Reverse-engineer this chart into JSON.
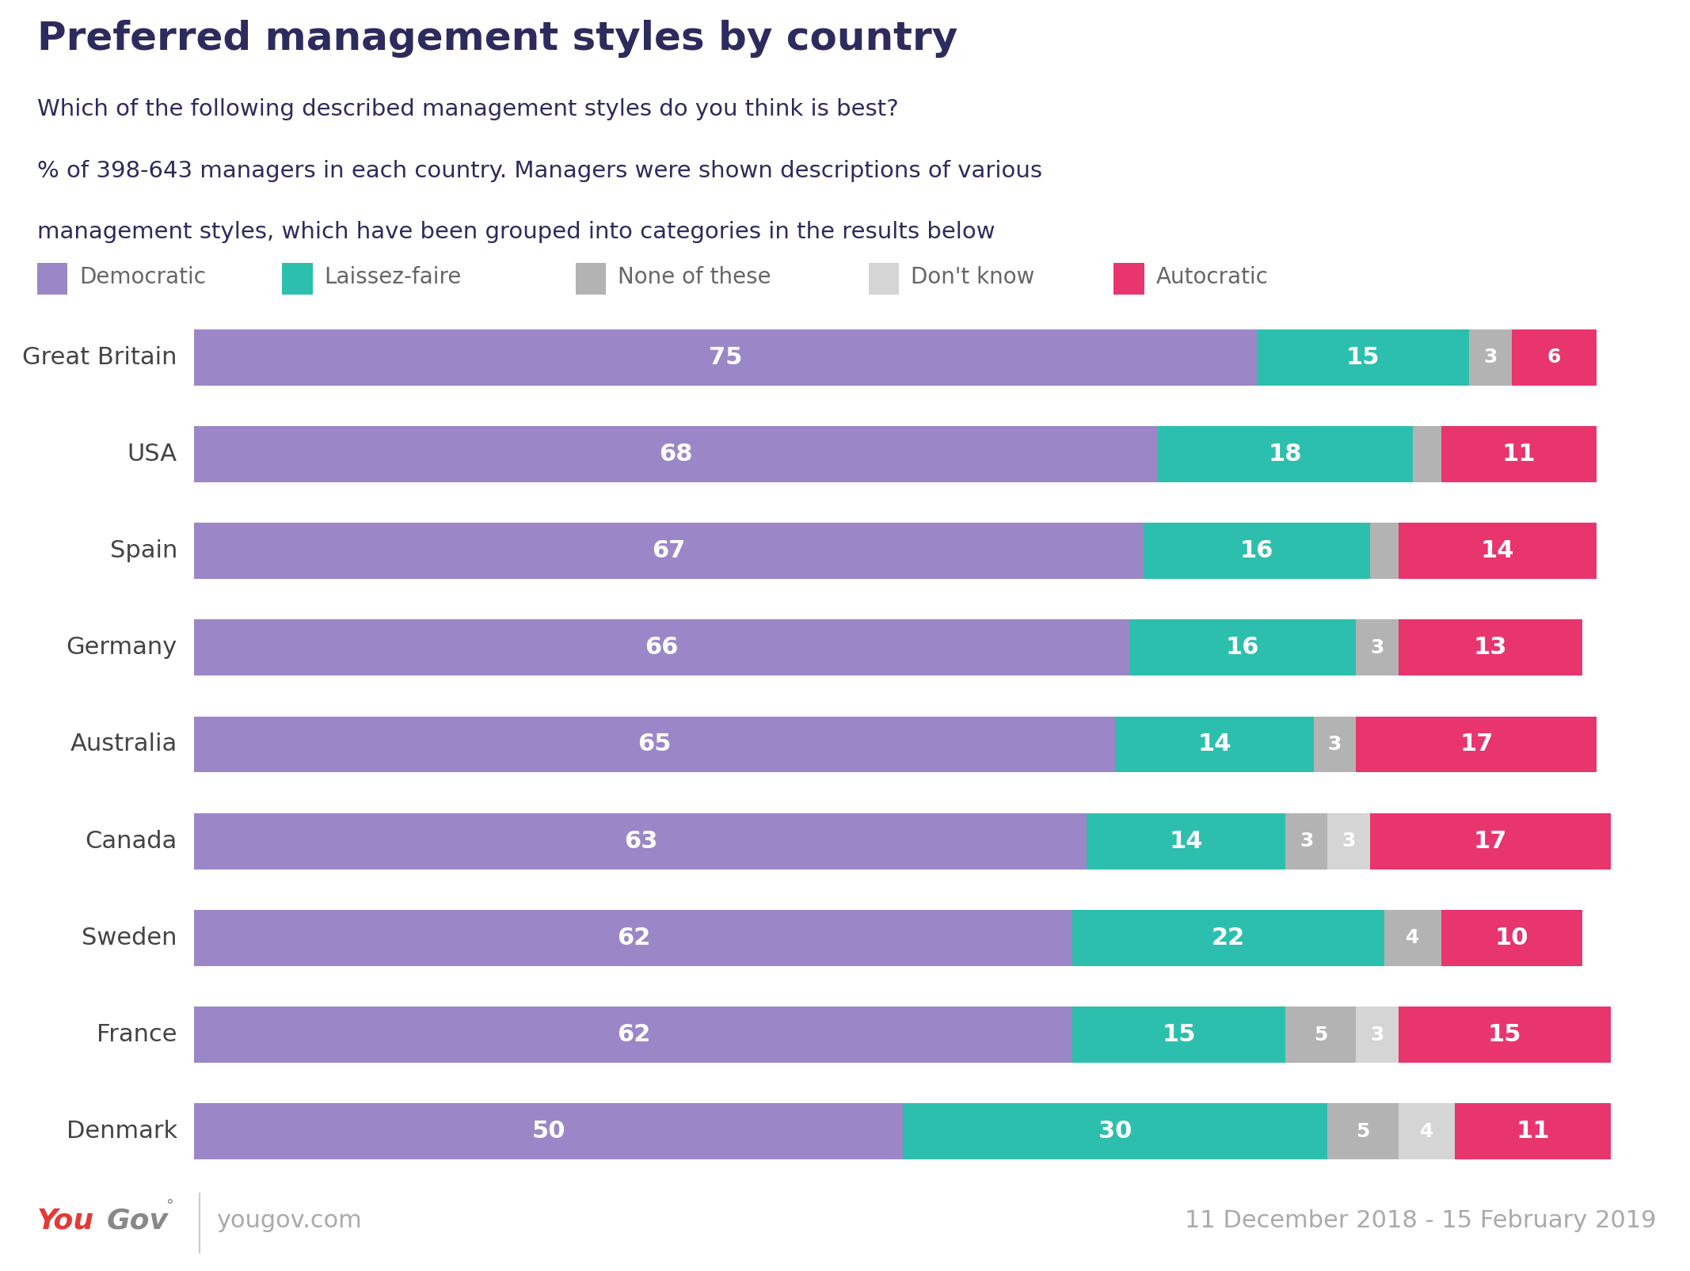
{
  "title": "Preferred management styles by country",
  "subtitle_lines": [
    "Which of the following described management styles do you think is best?",
    "% of 398-643 managers in each country. Managers were shown descriptions of various",
    "management styles, which have been grouped into categories in the results below"
  ],
  "countries": [
    "Great Britain",
    "USA",
    "Spain",
    "Germany",
    "Australia",
    "Canada",
    "Sweden",
    "France",
    "Denmark"
  ],
  "categories": [
    "Democratic",
    "Laissez-faire",
    "None of these",
    "Don't know",
    "Autocratic"
  ],
  "colors": [
    "#9b87c8",
    "#2dbfad",
    "#b3b3b3",
    "#d5d5d5",
    "#e8356d"
  ],
  "data": [
    [
      75,
      15,
      3,
      0,
      6
    ],
    [
      68,
      18,
      2,
      0,
      11
    ],
    [
      67,
      16,
      2,
      0,
      14
    ],
    [
      66,
      16,
      3,
      0,
      13
    ],
    [
      65,
      14,
      3,
      0,
      17
    ],
    [
      63,
      14,
      3,
      3,
      17
    ],
    [
      62,
      22,
      4,
      0,
      10
    ],
    [
      62,
      15,
      5,
      3,
      15
    ],
    [
      50,
      30,
      5,
      4,
      11
    ]
  ],
  "header_bg": "#eceaf3",
  "chart_bg": "#ffffff",
  "title_color": "#2d2b5e",
  "subtitle_color": "#2d2b5e",
  "label_color": "#444444",
  "legend_label_color": "#666666",
  "footer_date": "11 December 2018 - 15 February 2019",
  "footer_url": "yougov.com",
  "yougov_you_color": "#e53935",
  "yougov_gov_color": "#888888",
  "footer_color": "#aaaaaa"
}
